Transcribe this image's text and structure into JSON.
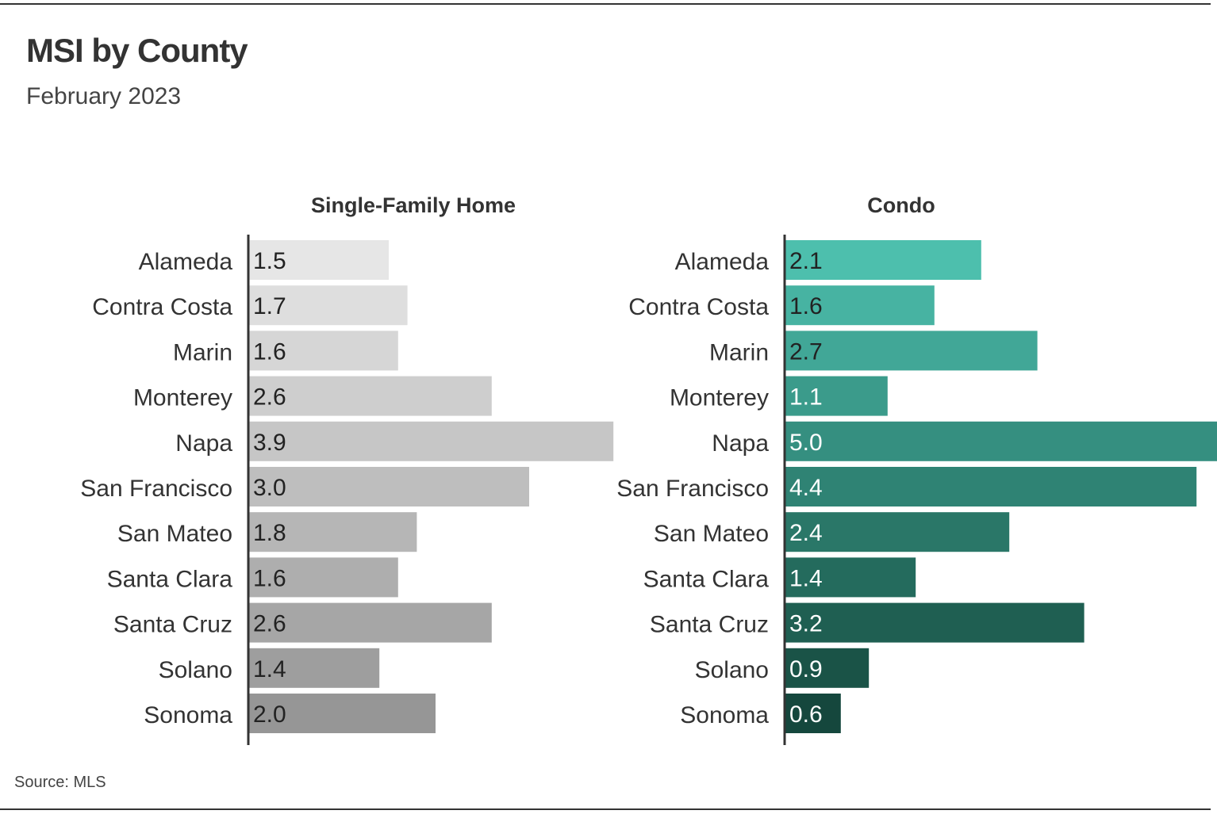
{
  "title": "MSI by County",
  "subtitle": "February 2023",
  "source": "Source:  MLS",
  "chart_data": {
    "type": "bar",
    "orientation": "horizontal",
    "categories": [
      "Alameda",
      "Contra Costa",
      "Marin",
      "Monterey",
      "Napa",
      "San Francisco",
      "San Mateo",
      "Santa Clara",
      "Santa Cruz",
      "Solano",
      "Sonoma"
    ],
    "series": [
      {
        "name": "Single-Family Home",
        "values": [
          1.5,
          1.7,
          1.6,
          2.6,
          3.9,
          3.0,
          1.8,
          1.6,
          2.6,
          1.4,
          2.0
        ],
        "labels": [
          "1.5",
          "1.7",
          "1.6",
          "2.6",
          "3.9",
          "3.0",
          "1.8",
          "1.6",
          "2.6",
          "1.4",
          "2.0"
        ],
        "colors": [
          "#e6e6e6",
          "#dedede",
          "#d6d6d6",
          "#cecece",
          "#c6c6c6",
          "#bebebe",
          "#b6b6b6",
          "#aeaeae",
          "#a6a6a6",
          "#9e9e9e",
          "#969696"
        ],
        "label_colors": [
          "#222222",
          "#222222",
          "#222222",
          "#222222",
          "#222222",
          "#222222",
          "#222222",
          "#222222",
          "#222222",
          "#222222",
          "#222222"
        ]
      },
      {
        "name": "Condo",
        "values": [
          2.1,
          1.6,
          2.7,
          1.1,
          5.0,
          4.4,
          2.4,
          1.4,
          3.2,
          0.9,
          0.6
        ],
        "labels": [
          "2.1",
          "1.6",
          "2.7",
          "1.1",
          "5.0",
          "4.4",
          "2.4",
          "1.4",
          "3.2",
          "0.9",
          "0.6"
        ],
        "colors": [
          "#4dbfad",
          "#47b3a2",
          "#41a797",
          "#3b9b8b",
          "#358f80",
          "#2f8374",
          "#2a7768",
          "#246b5d",
          "#1f5f52",
          "#1a5347",
          "#15473d"
        ],
        "label_colors": [
          "#222222",
          "#222222",
          "#222222",
          "#ffffff",
          "#ffffff",
          "#ffffff",
          "#ffffff",
          "#ffffff",
          "#ffffff",
          "#ffffff",
          "#ffffff"
        ]
      }
    ],
    "xlim": [
      0,
      5.0
    ]
  }
}
